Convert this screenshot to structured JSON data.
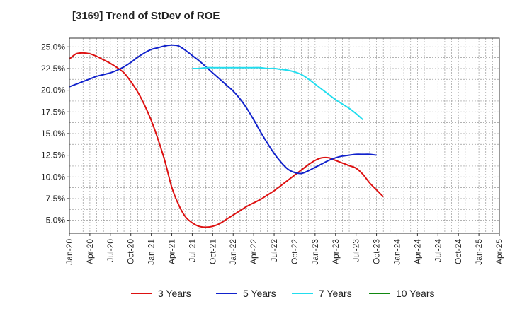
{
  "chart_data": {
    "type": "line",
    "title": "[3169]  Trend of StDev of ROE",
    "xlabel": "",
    "ylabel": "",
    "x_ticks": [
      "Jan-20",
      "Apr-20",
      "Jul-20",
      "Oct-20",
      "Jan-21",
      "Apr-21",
      "Jul-21",
      "Oct-21",
      "Jan-22",
      "Apr-22",
      "Jul-22",
      "Oct-22",
      "Jan-23",
      "Apr-23",
      "Jul-23",
      "Oct-23",
      "Jan-24",
      "Apr-24",
      "Jul-24",
      "Oct-24",
      "Jan-25",
      "Apr-25"
    ],
    "y_ticks": [
      "5.0%",
      "7.5%",
      "10.0%",
      "12.5%",
      "15.0%",
      "17.5%",
      "20.0%",
      "22.5%",
      "25.0%"
    ],
    "ylim": [
      3.5,
      26.0
    ],
    "grid": true,
    "legend_position": "bottom",
    "series": [
      {
        "name": "3 Years",
        "color": "#dd1111",
        "points": [
          [
            0,
            23.6
          ],
          [
            1,
            24.2
          ],
          [
            2,
            24.3
          ],
          [
            3,
            24.2
          ],
          [
            4,
            23.9
          ],
          [
            5,
            23.5
          ],
          [
            6,
            23.1
          ],
          [
            7,
            22.6
          ],
          [
            8,
            22.0
          ],
          [
            9,
            21.0
          ],
          [
            10,
            19.8
          ],
          [
            11,
            18.3
          ],
          [
            12,
            16.5
          ],
          [
            13,
            14.3
          ],
          [
            14,
            11.8
          ],
          [
            15,
            8.8
          ],
          [
            16,
            6.8
          ],
          [
            17,
            5.4
          ],
          [
            18,
            4.7
          ],
          [
            19,
            4.3
          ],
          [
            20,
            4.2
          ],
          [
            21,
            4.3
          ],
          [
            22,
            4.6
          ],
          [
            23,
            5.1
          ],
          [
            24,
            5.6
          ],
          [
            25,
            6.1
          ],
          [
            26,
            6.6
          ],
          [
            27,
            7.0
          ],
          [
            28,
            7.4
          ],
          [
            29,
            7.9
          ],
          [
            30,
            8.4
          ],
          [
            31,
            9.0
          ],
          [
            32,
            9.6
          ],
          [
            33,
            10.2
          ],
          [
            34,
            10.8
          ],
          [
            35,
            11.4
          ],
          [
            36,
            11.9
          ],
          [
            37,
            12.2
          ],
          [
            38,
            12.2
          ],
          [
            39,
            11.9
          ],
          [
            40,
            11.6
          ],
          [
            41,
            11.3
          ],
          [
            42,
            11.0
          ],
          [
            43,
            10.3
          ],
          [
            44,
            9.3
          ],
          [
            45,
            8.5
          ],
          [
            46,
            7.7
          ]
        ]
      },
      {
        "name": "5 Years",
        "color": "#1122cc",
        "points": [
          [
            0,
            20.4
          ],
          [
            1,
            20.7
          ],
          [
            2,
            21.0
          ],
          [
            3,
            21.3
          ],
          [
            4,
            21.6
          ],
          [
            5,
            21.8
          ],
          [
            6,
            22.0
          ],
          [
            7,
            22.3
          ],
          [
            8,
            22.7
          ],
          [
            9,
            23.2
          ],
          [
            10,
            23.8
          ],
          [
            11,
            24.3
          ],
          [
            12,
            24.7
          ],
          [
            13,
            24.9
          ],
          [
            14,
            25.1
          ],
          [
            15,
            25.2
          ],
          [
            16,
            25.1
          ],
          [
            17,
            24.6
          ],
          [
            18,
            24.0
          ],
          [
            19,
            23.4
          ],
          [
            20,
            22.7
          ],
          [
            21,
            22.0
          ],
          [
            22,
            21.3
          ],
          [
            23,
            20.6
          ],
          [
            24,
            19.9
          ],
          [
            25,
            19.0
          ],
          [
            26,
            17.9
          ],
          [
            27,
            16.6
          ],
          [
            28,
            15.2
          ],
          [
            29,
            13.9
          ],
          [
            30,
            12.7
          ],
          [
            31,
            11.7
          ],
          [
            32,
            10.9
          ],
          [
            33,
            10.5
          ],
          [
            34,
            10.4
          ],
          [
            35,
            10.7
          ],
          [
            36,
            11.1
          ],
          [
            37,
            11.5
          ],
          [
            38,
            11.9
          ],
          [
            39,
            12.2
          ],
          [
            40,
            12.4
          ],
          [
            41,
            12.5
          ],
          [
            42,
            12.6
          ],
          [
            43,
            12.6
          ],
          [
            44,
            12.6
          ],
          [
            45,
            12.5
          ]
        ]
      },
      {
        "name": "7 Years",
        "color": "#22ddee",
        "points": [
          [
            18,
            22.5
          ],
          [
            19,
            22.5
          ],
          [
            20,
            22.6
          ],
          [
            21,
            22.6
          ],
          [
            22,
            22.6
          ],
          [
            23,
            22.6
          ],
          [
            24,
            22.6
          ],
          [
            25,
            22.6
          ],
          [
            26,
            22.6
          ],
          [
            27,
            22.6
          ],
          [
            28,
            22.6
          ],
          [
            29,
            22.5
          ],
          [
            30,
            22.5
          ],
          [
            31,
            22.4
          ],
          [
            32,
            22.3
          ],
          [
            33,
            22.1
          ],
          [
            34,
            21.8
          ],
          [
            35,
            21.3
          ],
          [
            36,
            20.7
          ],
          [
            37,
            20.1
          ],
          [
            38,
            19.5
          ],
          [
            39,
            18.9
          ],
          [
            40,
            18.4
          ],
          [
            41,
            17.9
          ],
          [
            42,
            17.3
          ],
          [
            43,
            16.6
          ]
        ]
      },
      {
        "name": "10 Years",
        "color": "#118811",
        "points": []
      }
    ]
  }
}
